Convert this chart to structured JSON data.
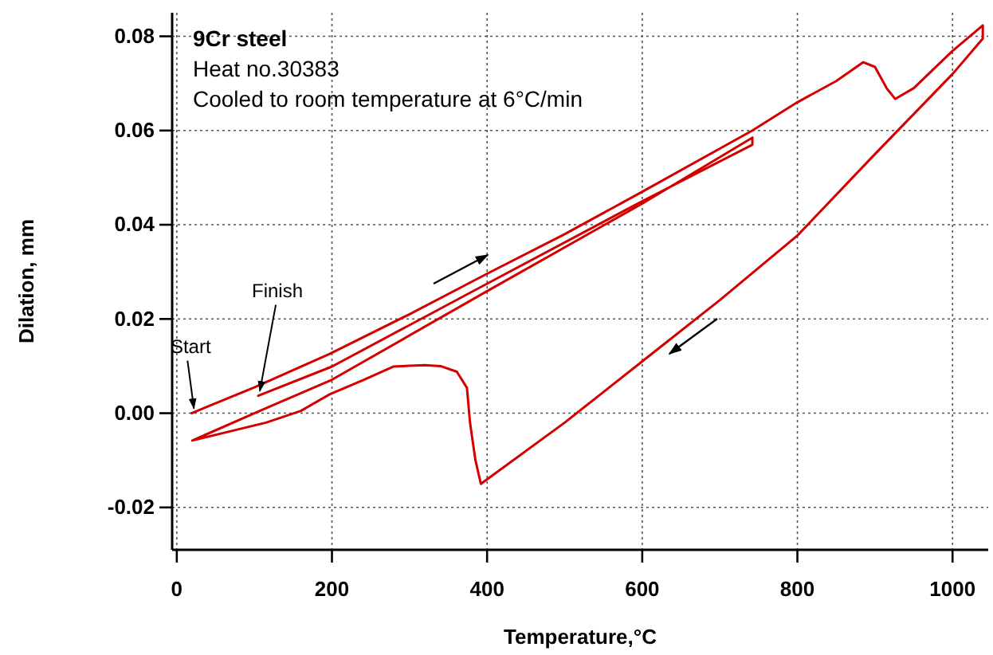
{
  "chart_data": {
    "type": "line",
    "title": "9Cr steel",
    "xlabel": "Temperature,°C",
    "ylabel": "Dilation, mm",
    "annotations": [
      "Heat no.30383",
      "Cooled to room temperature at 6°C/min",
      {
        "text": "Start",
        "x": 20,
        "y": 0
      },
      {
        "text": "Finish",
        "x": 105,
        "y": 0.0037
      }
    ],
    "xlim": [
      -6,
      1046
    ],
    "ylim": [
      -0.029,
      0.085
    ],
    "xticks": [
      0,
      200,
      400,
      600,
      800,
      1000
    ],
    "yticks": [
      {
        "value": -0.02,
        "label": "-0.02"
      },
      {
        "value": 0,
        "label": "0.00"
      },
      {
        "value": 0.02,
        "label": "0.02"
      },
      {
        "value": 0.04,
        "label": "0.04"
      },
      {
        "value": 0.06,
        "label": "0.06"
      },
      {
        "value": 0.08,
        "label": "0.08"
      }
    ],
    "grid": true,
    "line_style": "solid",
    "marker": "none",
    "series": [
      {
        "color": "#d40000",
        "x": [
          19,
          100,
          197,
          300,
          400,
          500,
          600,
          742,
          800,
          850,
          885,
          900,
          915,
          926,
          950,
          1000,
          1039,
          1039,
          1000,
          900,
          800,
          700,
          600,
          500,
          392,
          385,
          378,
          374,
          361,
          340,
          320,
          279,
          240,
          197,
          160,
          115,
          20,
          100,
          200,
          400,
          600,
          742,
          742,
          600,
          400,
          200,
          105
        ],
        "values": [
          0,
          0.0055,
          0.0126,
          0.021,
          0.0296,
          0.038,
          0.047,
          0.06,
          0.066,
          0.0705,
          0.0745,
          0.0735,
          0.069,
          0.0667,
          0.069,
          0.0769,
          0.0823,
          0.0795,
          0.072,
          0.055,
          0.0377,
          0.024,
          0.011,
          -0.002,
          -0.015,
          -0.01,
          -0.002,
          0.0054,
          0.0088,
          0.01,
          0.0102,
          0.0099,
          0.007,
          0.004,
          0.0005,
          -0.002,
          -0.0058,
          0,
          0.0071,
          0.0259,
          0.0445,
          0.0585,
          0.057,
          0.045,
          0.0275,
          0.0099,
          0.0037
        ]
      }
    ]
  }
}
